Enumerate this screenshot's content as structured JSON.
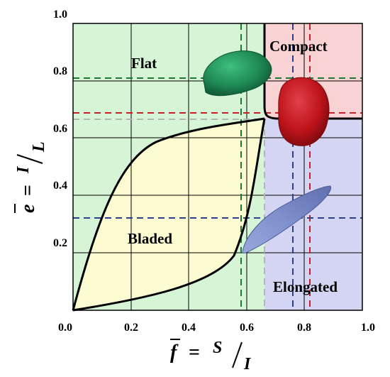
{
  "axes": {
    "x_ticks": [
      "0.0",
      "0.2",
      "0.4",
      "0.6",
      "0.8",
      "1.0"
    ],
    "y_ticks": [
      "0.2",
      "0.4",
      "0.6",
      "0.8",
      "1.0"
    ],
    "origin_label": "0.0",
    "x_title": {
      "symbol": "f",
      "equals": "=",
      "numerator": "S",
      "denominator": "I"
    },
    "y_title": {
      "symbol": "e",
      "equals": "=",
      "numerator": "I",
      "denominator": "L"
    }
  },
  "regions": {
    "flat": "Flat",
    "compact": "Compact",
    "bladed": "Bladed",
    "elongated": "Elongated"
  },
  "colors": {
    "flat": "#d6f5d6",
    "compact": "#f9d3d3",
    "bladed": "#fdfbd2",
    "elongated": "#d4d5f2",
    "green_particle": "#1f8a55",
    "red_particle": "#c0141b",
    "blue_particle": "#7f8fcb",
    "green_dash": "#1d7a33",
    "red_dash": "#c81e2a",
    "blue_dash": "#2b3f8c",
    "gray_dash": "#b5b5b5"
  },
  "reference_lines": {
    "green": {
      "f": 0.54,
      "e": 0.79
    },
    "red": {
      "f": 0.77,
      "e": 0.68
    },
    "blue": {
      "f": 0.71,
      "e": 0.32
    },
    "gray": {
      "f": 0.62,
      "e": 0.66
    }
  },
  "boundaries": {
    "compact_corner": {
      "f": 0.67,
      "e": 0.67
    }
  }
}
